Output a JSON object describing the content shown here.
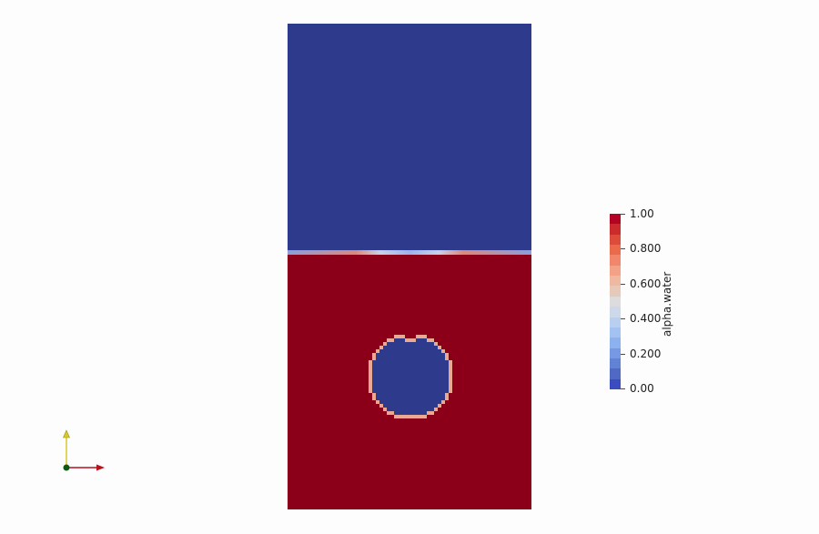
{
  "colors": {
    "air": "#2e3a8c",
    "water": "#8b0018",
    "interface_light": "#c7d3e8",
    "interface_mid": "#e9a993",
    "background": "#fdfdfe"
  },
  "colorbar": {
    "title": "alpha.water",
    "labels": [
      "1.00",
      "0.800",
      "0.600",
      "0.400",
      "0.200",
      "0.00"
    ],
    "range": [
      0,
      1
    ],
    "segments": [
      "#b40426",
      "#cc2b2d",
      "#dd4b3a",
      "#ea6a4b",
      "#f2866a",
      "#f4a287",
      "#f0b8a0",
      "#e6c9b8",
      "#dcdcdc",
      "#cdd9ea",
      "#b9cff0",
      "#a3c2f1",
      "#8db0ef",
      "#7799e3",
      "#6282d5",
      "#4f69c4",
      "#3b4cc0"
    ]
  },
  "field": {
    "free_surface_fraction": 0.473,
    "bubble_radius_fraction": 0.17
  },
  "triad": {
    "x_axis_color": "#b8121c",
    "y_axis_color": "#d7c92a",
    "origin_color": "#0e5a14"
  }
}
